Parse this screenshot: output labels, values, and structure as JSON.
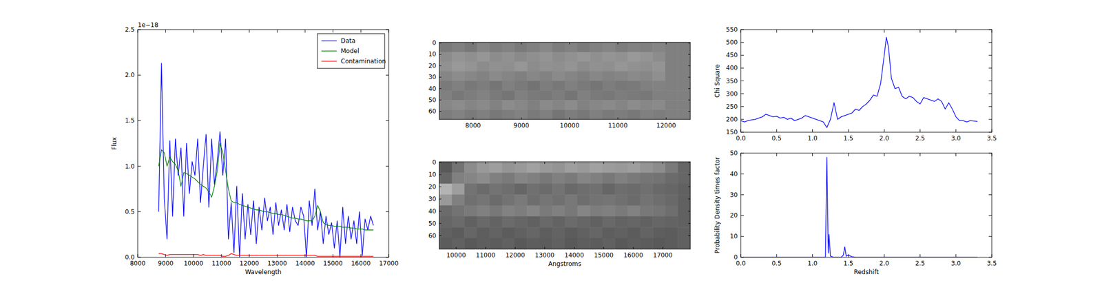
{
  "chart_data": [
    {
      "type": "line",
      "xlabel": "Wavelength",
      "ylabel": "Flux",
      "y_offset_text": "1e−18",
      "legend": "upper right",
      "xlim": [
        8000,
        17000
      ],
      "ylim": [
        0,
        2.5
      ],
      "xticks": [
        8000,
        9000,
        10000,
        11000,
        12000,
        13000,
        14000,
        15000,
        16000,
        17000
      ],
      "yticks": [
        {
          "value": 0,
          "label": "0.0"
        },
        {
          "value": 0.5,
          "label": "0.5"
        },
        {
          "value": 1.0,
          "label": "1.0"
        },
        {
          "value": 1.5,
          "label": "1.5"
        },
        {
          "value": 2.0,
          "label": "2.0"
        },
        {
          "value": 2.5,
          "label": "2.5"
        }
      ],
      "x": [
        8750,
        8850,
        8950,
        9050,
        9150,
        9250,
        9350,
        9450,
        9550,
        9650,
        9750,
        9850,
        9950,
        10050,
        10150,
        10250,
        10350,
        10450,
        10550,
        10650,
        10750,
        10850,
        10950,
        11050,
        11150,
        11250,
        11350,
        11450,
        11550,
        11650,
        11750,
        11850,
        11950,
        12050,
        12150,
        12250,
        12350,
        12450,
        12550,
        12650,
        12750,
        12850,
        12950,
        13050,
        13150,
        13250,
        13350,
        13450,
        13550,
        13650,
        13750,
        13850,
        13950,
        14050,
        14150,
        14250,
        14350,
        14450,
        14550,
        14650,
        14750,
        14850,
        14950,
        15050,
        15150,
        15250,
        15350,
        15450,
        15550,
        15650,
        15750,
        15850,
        15950,
        16050,
        16150,
        16250,
        16350,
        16450
      ],
      "series": [
        {
          "name": "Data",
          "color": "#0000ff",
          "values": [
            0.5,
            2.13,
            0.65,
            0.2,
            1.28,
            0.45,
            1.3,
            0.9,
            1.2,
            0.45,
            1.25,
            0.7,
            1.05,
            0.9,
            1.3,
            0.6,
            1.0,
            1.35,
            0.55,
            1.3,
            0.8,
            1.05,
            1.38,
            0.9,
            1.3,
            0.2,
            0.6,
            0.05,
            0.78,
            0.0,
            0.7,
            0.2,
            0.58,
            0.25,
            0.62,
            0.15,
            0.55,
            0.3,
            0.65,
            0.4,
            0.55,
            0.25,
            0.6,
            0.35,
            0.52,
            0.3,
            0.58,
            0.28,
            0.55,
            0.4,
            0.35,
            0.55,
            0.45,
            0.0,
            0.62,
            0.35,
            0.75,
            0.3,
            0.5,
            0.15,
            0.45,
            0.25,
            0.38,
            0.1,
            0.4,
            0.0,
            0.55,
            0.15,
            0.45,
            0.2,
            0.4,
            0.15,
            0.5,
            0.02,
            0.42,
            0.3,
            0.45,
            0.35
          ]
        },
        {
          "name": "Model",
          "color": "#008000",
          "values": [
            1.0,
            1.18,
            1.15,
            1.0,
            1.1,
            1.05,
            1.02,
            0.95,
            0.78,
            0.93,
            0.92,
            0.9,
            0.88,
            0.86,
            0.83,
            0.8,
            0.78,
            0.76,
            0.72,
            0.66,
            0.78,
            0.95,
            1.25,
            1.15,
            0.95,
            0.75,
            0.62,
            0.6,
            0.6,
            0.58,
            0.57,
            0.56,
            0.55,
            0.54,
            0.53,
            0.52,
            0.52,
            0.51,
            0.5,
            0.5,
            0.49,
            0.48,
            0.48,
            0.47,
            0.47,
            0.46,
            0.45,
            0.44,
            0.43,
            0.43,
            0.42,
            0.42,
            0.41,
            0.4,
            0.4,
            0.4,
            0.45,
            0.57,
            0.5,
            0.38,
            0.36,
            0.35,
            0.35,
            0.34,
            0.34,
            0.34,
            0.33,
            0.33,
            0.33,
            0.32,
            0.32,
            0.31,
            0.31,
            0.31,
            0.3,
            0.3,
            0.3,
            0.3
          ]
        },
        {
          "name": "Contamination",
          "color": "#ff0000",
          "values": [
            0.04,
            0.04,
            0.03,
            0.02,
            0.03,
            0.03,
            0.03,
            0.03,
            0.03,
            0.03,
            0.03,
            0.03,
            0.03,
            0.03,
            0.03,
            0.02,
            0.03,
            0.02,
            0.02,
            0.02,
            0.02,
            0.02,
            0.02,
            0.01,
            0.01,
            0.02,
            0.04,
            0.03,
            0.02,
            0.02,
            0.02,
            0.02,
            0.02,
            0.02,
            0.02,
            0.02,
            0.02,
            0.02,
            0.02,
            0.02,
            0.02,
            0.02,
            0.02,
            0.02,
            0.02,
            0.02,
            0.02,
            0.02,
            0.02,
            0.02,
            0.02,
            0.02,
            0.02,
            0.02,
            0.02,
            0.02,
            0.02,
            0.01,
            0.01,
            0.01,
            0.01,
            0.01,
            0.01,
            0.01,
            0.01,
            0.01,
            0.01,
            0.01,
            0.01,
            0.01,
            0.01,
            0.01,
            0.01,
            0.01,
            0.01,
            0.01,
            0.01,
            0.01
          ]
        }
      ]
    },
    {
      "type": "heatmap",
      "xlim": [
        7300,
        12500
      ],
      "ylim": [
        67,
        -0.5
      ],
      "xticks": [
        8000,
        9000,
        10000,
        11000,
        12000
      ],
      "yticks": [
        0,
        10,
        20,
        30,
        40,
        50,
        60
      ],
      "cells": [
        [
          0.48,
          0.5,
          0.47,
          0.52,
          0.49,
          0.51,
          0.48,
          0.5,
          0.53,
          0.49,
          0.51,
          0.48,
          0.5,
          0.52,
          0.49,
          0.51,
          0.5,
          0.52,
          0.5,
          0.5
        ],
        [
          0.55,
          0.58,
          0.56,
          0.59,
          0.55,
          0.57,
          0.54,
          0.56,
          0.58,
          0.55,
          0.57,
          0.59,
          0.56,
          0.58,
          0.57,
          0.6,
          0.58,
          0.55,
          0.5,
          0.5
        ],
        [
          0.57,
          0.6,
          0.58,
          0.55,
          0.57,
          0.56,
          0.59,
          0.55,
          0.57,
          0.56,
          0.58,
          0.55,
          0.57,
          0.56,
          0.59,
          0.57,
          0.56,
          0.58,
          0.5,
          0.5
        ],
        [
          0.52,
          0.55,
          0.53,
          0.51,
          0.54,
          0.52,
          0.5,
          0.53,
          0.51,
          0.54,
          0.52,
          0.5,
          0.53,
          0.51,
          0.52,
          0.54,
          0.53,
          0.56,
          0.5,
          0.5
        ],
        [
          0.48,
          0.5,
          0.47,
          0.49,
          0.46,
          0.5,
          0.48,
          0.45,
          0.49,
          0.47,
          0.5,
          0.48,
          0.46,
          0.49,
          0.47,
          0.48,
          0.5,
          0.51,
          0.5,
          0.5
        ],
        [
          0.5,
          0.47,
          0.49,
          0.51,
          0.48,
          0.46,
          0.5,
          0.48,
          0.47,
          0.49,
          0.46,
          0.5,
          0.48,
          0.47,
          0.49,
          0.48,
          0.47,
          0.5,
          0.5,
          0.5
        ],
        [
          0.53,
          0.55,
          0.52,
          0.54,
          0.51,
          0.55,
          0.53,
          0.5,
          0.54,
          0.52,
          0.55,
          0.51,
          0.53,
          0.54,
          0.52,
          0.55,
          0.53,
          0.54,
          0.5,
          0.5
        ],
        [
          0.49,
          0.51,
          0.48,
          0.5,
          0.47,
          0.49,
          0.51,
          0.48,
          0.5,
          0.46,
          0.49,
          0.47,
          0.5,
          0.48,
          0.49,
          0.47,
          0.5,
          0.49,
          0.5,
          0.5
        ]
      ]
    },
    {
      "type": "heatmap",
      "xlabel": "Angstroms",
      "xlim": [
        9430,
        17930
      ],
      "ylim": [
        71,
        -0.5
      ],
      "xticks": [
        10000,
        11000,
        12000,
        13000,
        14000,
        15000,
        16000,
        17000
      ],
      "yticks": [
        0,
        10,
        20,
        30,
        40,
        50,
        60
      ],
      "cells": [
        [
          0.35,
          0.45,
          0.55,
          0.6,
          0.62,
          0.58,
          0.6,
          0.63,
          0.6,
          0.58,
          0.62,
          0.6,
          0.63,
          0.61,
          0.6,
          0.62,
          0.58,
          0.55,
          0.48,
          0.4
        ],
        [
          0.4,
          0.5,
          0.52,
          0.55,
          0.5,
          0.48,
          0.52,
          0.5,
          0.47,
          0.5,
          0.48,
          0.52,
          0.5,
          0.47,
          0.5,
          0.48,
          0.46,
          0.45,
          0.42,
          0.4
        ],
        [
          0.7,
          0.62,
          0.45,
          0.42,
          0.45,
          0.43,
          0.4,
          0.44,
          0.42,
          0.45,
          0.41,
          0.43,
          0.44,
          0.4,
          0.43,
          0.42,
          0.44,
          0.41,
          0.4,
          0.38
        ],
        [
          0.6,
          0.5,
          0.44,
          0.46,
          0.42,
          0.45,
          0.48,
          0.43,
          0.46,
          0.44,
          0.47,
          0.43,
          0.45,
          0.46,
          0.44,
          0.42,
          0.45,
          0.43,
          0.41,
          0.38
        ],
        [
          0.42,
          0.45,
          0.48,
          0.5,
          0.47,
          0.51,
          0.49,
          0.52,
          0.48,
          0.5,
          0.47,
          0.52,
          0.49,
          0.5,
          0.48,
          0.51,
          0.47,
          0.46,
          0.43,
          0.38
        ],
        [
          0.4,
          0.42,
          0.38,
          0.41,
          0.39,
          0.42,
          0.4,
          0.38,
          0.41,
          0.39,
          0.42,
          0.4,
          0.38,
          0.41,
          0.39,
          0.4,
          0.38,
          0.4,
          0.39,
          0.38
        ],
        [
          0.38,
          0.36,
          0.4,
          0.37,
          0.39,
          0.36,
          0.38,
          0.4,
          0.37,
          0.39,
          0.36,
          0.38,
          0.4,
          0.37,
          0.38,
          0.36,
          0.39,
          0.37,
          0.36,
          0.38
        ],
        [
          0.36,
          0.38,
          0.35,
          0.37,
          0.36,
          0.38,
          0.35,
          0.37,
          0.36,
          0.38,
          0.35,
          0.37,
          0.36,
          0.38,
          0.35,
          0.37,
          0.36,
          0.35,
          0.36,
          0.38
        ]
      ]
    },
    {
      "type": "line",
      "ylabel": "Chi Square",
      "xlim": [
        0,
        3.5
      ],
      "ylim": [
        150,
        550
      ],
      "xticks": [
        {
          "value": 0,
          "label": "0.0"
        },
        {
          "value": 0.5,
          "label": "0.5"
        },
        {
          "value": 1.0,
          "label": "1.0"
        },
        {
          "value": 1.5,
          "label": "1.5"
        },
        {
          "value": 2.0,
          "label": "2.0"
        },
        {
          "value": 2.5,
          "label": "2.5"
        },
        {
          "value": 3.0,
          "label": "3.0"
        },
        {
          "value": 3.5,
          "label": "3.5"
        }
      ],
      "yticks": [
        150,
        200,
        250,
        300,
        350,
        400,
        450,
        500,
        550
      ],
      "x": [
        0.0,
        0.05,
        0.1,
        0.15,
        0.2,
        0.25,
        0.3,
        0.35,
        0.4,
        0.45,
        0.5,
        0.55,
        0.6,
        0.65,
        0.7,
        0.75,
        0.8,
        0.85,
        0.9,
        0.95,
        1.0,
        1.05,
        1.1,
        1.15,
        1.2,
        1.25,
        1.3,
        1.35,
        1.4,
        1.45,
        1.5,
        1.55,
        1.6,
        1.65,
        1.7,
        1.75,
        1.8,
        1.85,
        1.9,
        1.95,
        2.0,
        2.03,
        2.06,
        2.1,
        2.15,
        2.2,
        2.25,
        2.3,
        2.35,
        2.4,
        2.45,
        2.5,
        2.55,
        2.6,
        2.65,
        2.7,
        2.75,
        2.8,
        2.85,
        2.9,
        2.95,
        3.0,
        3.05,
        3.1,
        3.15,
        3.2,
        3.3
      ],
      "series": [
        {
          "color": "#0000ff",
          "values": [
            195,
            190,
            195,
            198,
            200,
            205,
            210,
            220,
            215,
            210,
            212,
            205,
            208,
            200,
            205,
            195,
            200,
            205,
            215,
            210,
            205,
            200,
            195,
            190,
            168,
            200,
            265,
            200,
            210,
            215,
            220,
            225,
            240,
            235,
            250,
            260,
            275,
            295,
            290,
            340,
            450,
            520,
            480,
            360,
            320,
            325,
            290,
            280,
            290,
            285,
            270,
            260,
            285,
            280,
            275,
            270,
            280,
            270,
            240,
            265,
            240,
            210,
            195,
            195,
            190,
            195,
            192
          ]
        }
      ]
    },
    {
      "type": "line",
      "xlabel": "Redshift",
      "ylabel": "Probability Density times factor",
      "xlim": [
        0,
        3.5
      ],
      "ylim": [
        0,
        50
      ],
      "xticks": [
        {
          "value": 0,
          "label": "0.0"
        },
        {
          "value": 0.5,
          "label": "0.5"
        },
        {
          "value": 1.0,
          "label": "1.0"
        },
        {
          "value": 1.5,
          "label": "1.5"
        },
        {
          "value": 2.0,
          "label": "2.0"
        },
        {
          "value": 2.5,
          "label": "2.5"
        },
        {
          "value": 3.0,
          "label": "3.0"
        },
        {
          "value": 3.5,
          "label": "3.5"
        }
      ],
      "yticks": [
        0,
        10,
        20,
        30,
        40,
        50
      ],
      "x": [
        0.0,
        1.15,
        1.18,
        1.2,
        1.22,
        1.23,
        1.25,
        1.3,
        1.4,
        1.43,
        1.45,
        1.47,
        1.5,
        1.55,
        1.6,
        3.3
      ],
      "series": [
        {
          "color": "#0000ff",
          "values": [
            0,
            0,
            0,
            48,
            2,
            11,
            0.5,
            0,
            0,
            1,
            5,
            0.5,
            1,
            0.3,
            0,
            0
          ]
        }
      ]
    }
  ]
}
